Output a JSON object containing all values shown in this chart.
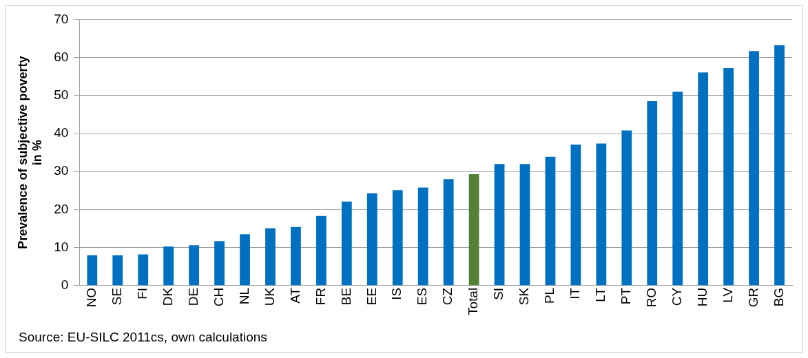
{
  "chart_data": {
    "type": "bar",
    "ylabel": "Prevalence of subjective poverty in %",
    "categories": [
      "NO",
      "SE",
      "FI",
      "DK",
      "DE",
      "CH",
      "NL",
      "UK",
      "AT",
      "FR",
      "BE",
      "EE",
      "IS",
      "ES",
      "CZ",
      "Total",
      "SI",
      "SK",
      "PL",
      "IT",
      "LT",
      "PT",
      "RO",
      "CY",
      "HU",
      "LV",
      "GR",
      "BG"
    ],
    "values": [
      8,
      8,
      8.2,
      10.3,
      10.6,
      11.7,
      13.5,
      15.1,
      15.4,
      18.3,
      22.1,
      24.3,
      25.1,
      25.8,
      28,
      29.3,
      32,
      32,
      33.9,
      37.1,
      37.4,
      40.8,
      48.5,
      51,
      56.1,
      57.2,
      61.7,
      63.3
    ],
    "colors": [
      "#0070c0",
      "#0070c0",
      "#0070c0",
      "#0070c0",
      "#0070c0",
      "#0070c0",
      "#0070c0",
      "#0070c0",
      "#0070c0",
      "#0070c0",
      "#0070c0",
      "#0070c0",
      "#0070c0",
      "#0070c0",
      "#0070c0",
      "#538135",
      "#0070c0",
      "#0070c0",
      "#0070c0",
      "#0070c0",
      "#0070c0",
      "#0070c0",
      "#0070c0",
      "#0070c0",
      "#0070c0",
      "#0070c0",
      "#0070c0",
      "#0070c0"
    ],
    "ylim": [
      0,
      70
    ],
    "yticks": [
      0,
      10,
      20,
      30,
      40,
      50,
      60,
      70
    ],
    "grid": "y",
    "legend": false,
    "annotations": [
      "Source: EU-SILC 2011cs, own calculations"
    ]
  }
}
